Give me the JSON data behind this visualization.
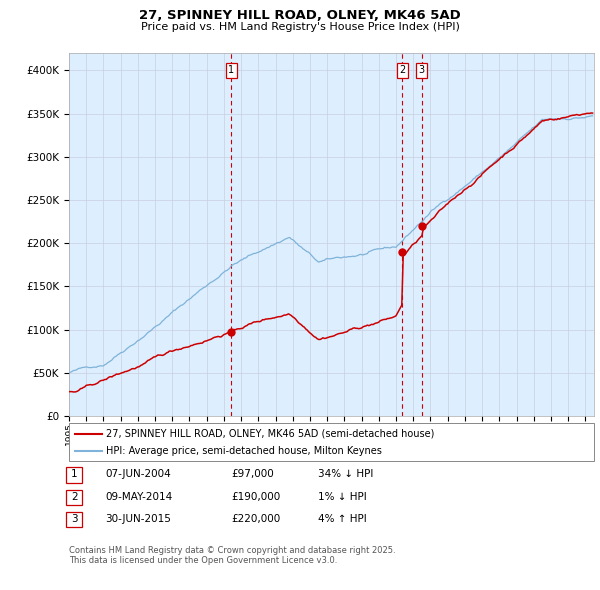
{
  "title": "27, SPINNEY HILL ROAD, OLNEY, MK46 5AD",
  "subtitle": "Price paid vs. HM Land Registry's House Price Index (HPI)",
  "legend_line1": "27, SPINNEY HILL ROAD, OLNEY, MK46 5AD (semi-detached house)",
  "legend_line2": "HPI: Average price, semi-detached house, Milton Keynes",
  "transactions": [
    {
      "num": "1",
      "date": "07-JUN-2004",
      "price": "£97,000",
      "hpi_diff": "34% ↓ HPI",
      "date_decimal": 2004.44,
      "price_val": 97000
    },
    {
      "num": "2",
      "date": "09-MAY-2014",
      "price": "£190,000",
      "hpi_diff": "1% ↓ HPI",
      "date_decimal": 2014.36,
      "price_val": 190000
    },
    {
      "num": "3",
      "date": "30-JUN-2015",
      "price": "£220,000",
      "hpi_diff": "4% ↑ HPI",
      "date_decimal": 2015.5,
      "price_val": 220000
    }
  ],
  "footer": "Contains HM Land Registry data © Crown copyright and database right 2025.\nThis data is licensed under the Open Government Licence v3.0.",
  "red_color": "#cc0000",
  "blue_color": "#7fb3d9",
  "bg_color": "#ddeeff",
  "grid_color": "#c8cfe0",
  "ylim": [
    0,
    420000
  ],
  "yticks": [
    0,
    50000,
    100000,
    150000,
    200000,
    250000,
    300000,
    350000,
    400000
  ],
  "xlim_start": 1995.0,
  "xlim_end": 2025.5,
  "xticks": [
    1995,
    1996,
    1997,
    1998,
    1999,
    2000,
    2001,
    2002,
    2003,
    2004,
    2005,
    2006,
    2007,
    2008,
    2009,
    2010,
    2011,
    2012,
    2013,
    2014,
    2015,
    2016,
    2017,
    2018,
    2019,
    2020,
    2021,
    2022,
    2023,
    2024,
    2025
  ]
}
